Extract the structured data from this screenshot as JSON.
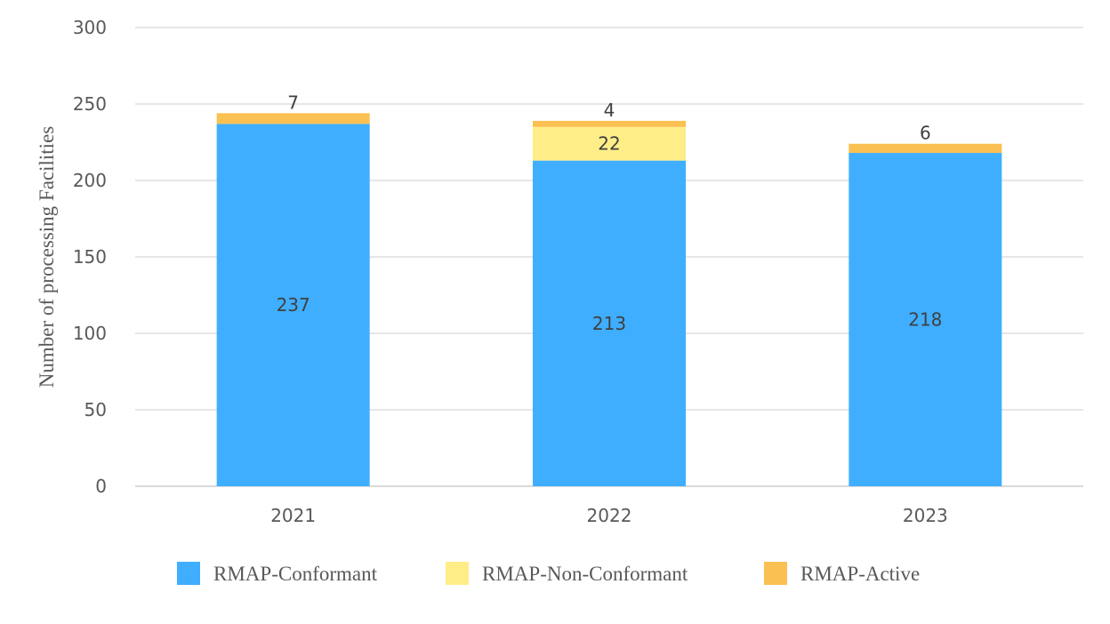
{
  "chart_data": {
    "type": "bar",
    "stacked": true,
    "title": "",
    "xlabel": "",
    "ylabel": "Number of processing Facilities",
    "ylim": [
      0,
      300
    ],
    "yticks": [
      0,
      50,
      100,
      150,
      200,
      250,
      300
    ],
    "grid": true,
    "legend_position": "bottom",
    "categories": [
      "2021",
      "2022",
      "2023"
    ],
    "series": [
      {
        "name": "RMAP-Conformant",
        "color": "#3FAEFF",
        "values": [
          237,
          213,
          218
        ]
      },
      {
        "name": "RMAP-Non-Conformant",
        "color": "#FFEE88",
        "values": [
          0,
          22,
          0
        ]
      },
      {
        "name": "RMAP-Active",
        "color": "#FAC052",
        "values": [
          7,
          4,
          6
        ]
      }
    ]
  }
}
